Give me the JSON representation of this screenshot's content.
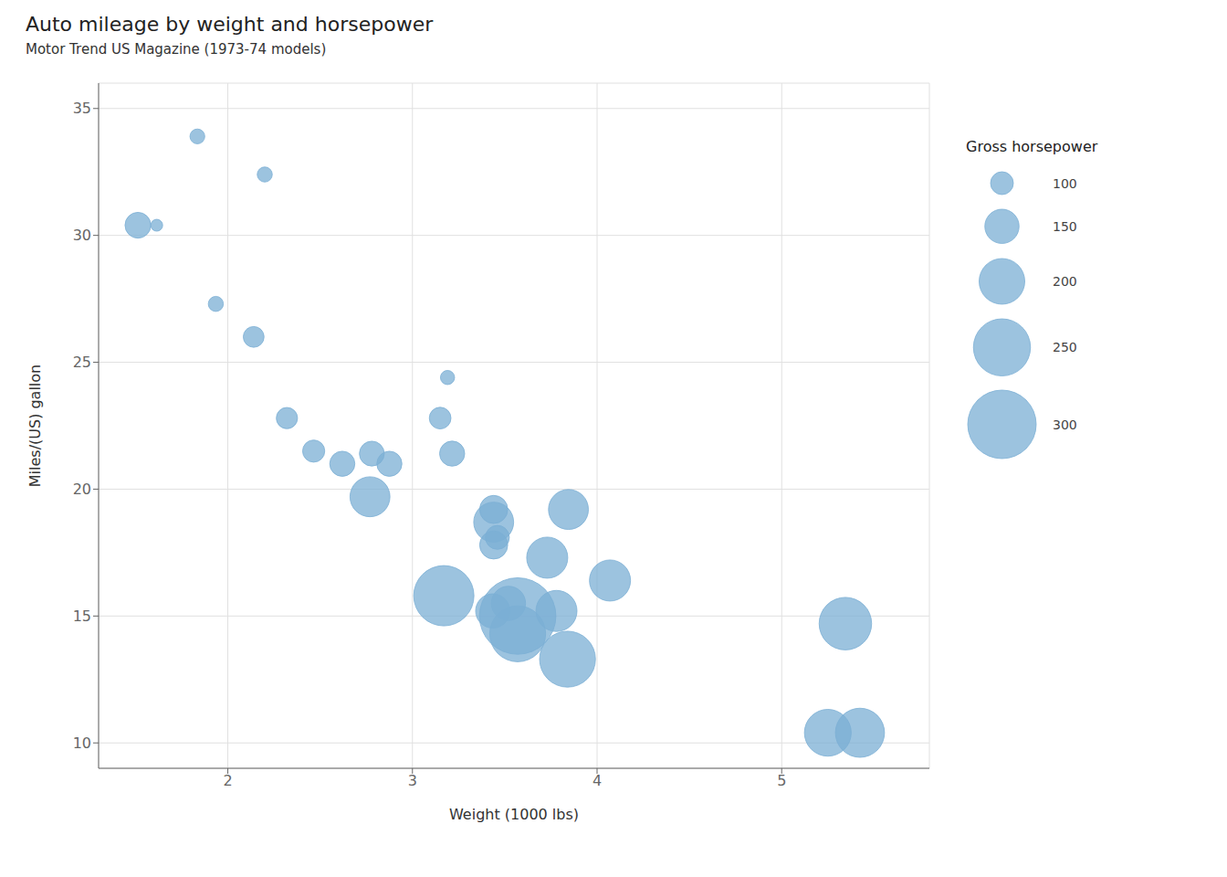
{
  "chart_data": {
    "type": "scatter",
    "title": "Auto mileage by weight and horsepower",
    "subtitle": "Motor Trend US Magazine (1973-74 models)",
    "xlabel": "Weight (1000 lbs)",
    "ylabel": "Miles/(US) gallon",
    "x": [
      2.62,
      2.875,
      2.32,
      3.215,
      3.44,
      3.46,
      3.57,
      3.19,
      3.15,
      3.44,
      3.44,
      4.07,
      3.73,
      3.78,
      5.25,
      5.424,
      5.345,
      2.2,
      1.615,
      1.835,
      2.465,
      3.52,
      3.435,
      3.84,
      3.845,
      1.935,
      2.14,
      1.513,
      3.17,
      2.77,
      3.57,
      2.78
    ],
    "values": [
      21.0,
      21.0,
      22.8,
      21.4,
      18.7,
      18.1,
      14.3,
      24.4,
      22.8,
      19.2,
      17.8,
      16.4,
      17.3,
      15.2,
      10.4,
      10.4,
      14.7,
      32.4,
      30.4,
      33.9,
      21.5,
      15.5,
      15.2,
      13.3,
      19.2,
      27.3,
      26.0,
      30.4,
      15.8,
      19.7,
      15.0,
      21.4
    ],
    "sizes": [
      110,
      110,
      93,
      110,
      175,
      105,
      245,
      62,
      95,
      123,
      123,
      180,
      180,
      180,
      205,
      215,
      230,
      66,
      52,
      65,
      97,
      150,
      150,
      245,
      175,
      66,
      91,
      113,
      264,
      175,
      335,
      109
    ],
    "legend_title": "Gross horsepower",
    "size_legend": [
      100,
      150,
      200,
      250,
      300
    ],
    "legend": "right",
    "color": "#7BAFD4",
    "xlim": [
      1.3,
      5.8
    ],
    "ylim": [
      9.0,
      36.0
    ],
    "xticks": [
      2,
      3,
      4,
      5
    ],
    "yticks": [
      10,
      15,
      20,
      25,
      30,
      35
    ],
    "grid": true
  }
}
